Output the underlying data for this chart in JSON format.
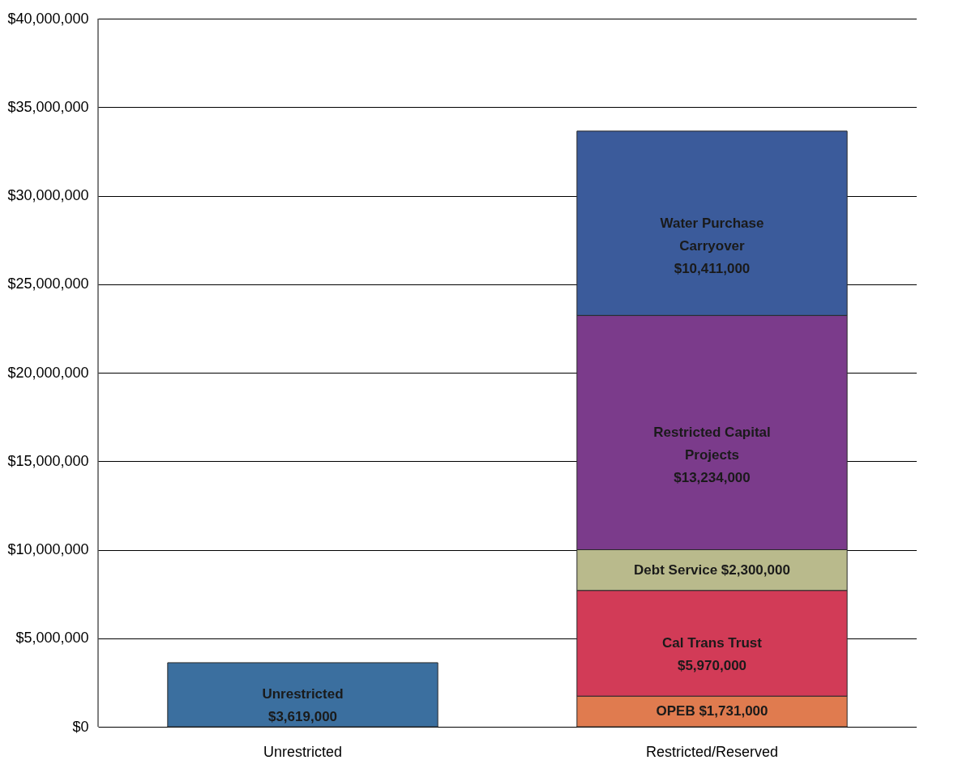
{
  "chart_data": {
    "type": "bar",
    "stacked": true,
    "categories": [
      "Unrestricted",
      "Restricted/Reserved"
    ],
    "series": [
      {
        "name": "Unrestricted",
        "color": "#3b6f9f",
        "values": [
          3619000,
          null
        ],
        "value_labels": [
          "$3,619,000",
          null
        ]
      },
      {
        "name": "OPEB",
        "color": "#e07b4f",
        "values": [
          null,
          1731000
        ],
        "value_labels": [
          null,
          "$1,731,000"
        ]
      },
      {
        "name": "Cal Trans Trust",
        "color": "#d23b57",
        "values": [
          null,
          5970000
        ],
        "value_labels": [
          null,
          "$5,970,000"
        ]
      },
      {
        "name": "Debt Service",
        "color": "#b9ba8c",
        "values": [
          null,
          2300000
        ],
        "value_labels": [
          null,
          "$2,300,000"
        ]
      },
      {
        "name": "Restricted Capital Projects",
        "color": "#7b3b8b",
        "values": [
          null,
          13234000
        ],
        "value_labels": [
          null,
          "$13,234,000"
        ]
      },
      {
        "name": "Water Purchase Carryover",
        "color": "#3b5b9b",
        "values": [
          null,
          10411000
        ],
        "value_labels": [
          null,
          "$10,411,000"
        ]
      }
    ],
    "ylim": [
      0,
      40000000
    ],
    "yticks": [
      {
        "value": 0,
        "label": "$0"
      },
      {
        "value": 5000000,
        "label": "$5,000,000"
      },
      {
        "value": 10000000,
        "label": "$10,000,000"
      },
      {
        "value": 15000000,
        "label": "$15,000,000"
      },
      {
        "value": 20000000,
        "label": "$20,000,000"
      },
      {
        "value": 25000000,
        "label": "$25,000,000"
      },
      {
        "value": 30000000,
        "label": "$30,000,000"
      },
      {
        "value": 35000000,
        "label": "$35,000,000"
      },
      {
        "value": 40000000,
        "label": "$40,000,000"
      }
    ],
    "grid": "y",
    "legend": false
  }
}
